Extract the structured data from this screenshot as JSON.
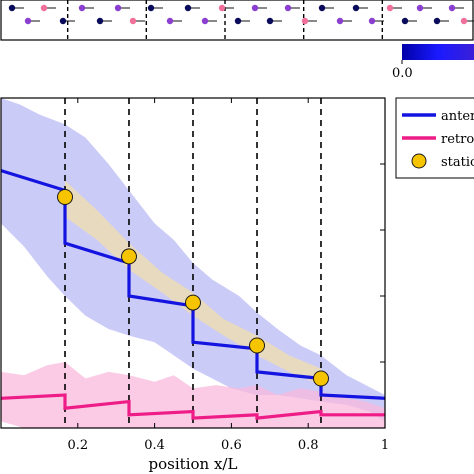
{
  "colors": {
    "anterograde": "#1414e0",
    "retrograde": "#ee1c87",
    "station": "#f7c400",
    "station_edge": "#1a1a1a",
    "anterograde_band": "#b9b9f5",
    "retrograde_band": "#f9b8dc",
    "station_band": "#f3dfa6",
    "particle_dark": "#0a0a5a",
    "particle_purple": "#8a3fd0",
    "particle_pink": "#f0709a"
  },
  "colorbar": {
    "tick_label": "0.0"
  },
  "legend": {
    "items": [
      {
        "label": "antero",
        "marker": "line",
        "color_key": "anterograde"
      },
      {
        "label": "retro",
        "marker": "line",
        "color_key": "retrograde"
      },
      {
        "label": "statio",
        "marker": "circle",
        "color_key": "station"
      }
    ]
  },
  "chart_data": {
    "type": "line",
    "xlabel": "position x/L",
    "xlim": [
      0,
      1
    ],
    "ylim": [
      0,
      1
    ],
    "x_ticks": [
      0.2,
      0.4,
      0.6,
      0.8,
      1
    ],
    "x_tick_labels": [
      "0.2",
      "0.4",
      "0.6",
      "0.8",
      "1"
    ],
    "dividers": [
      0.1667,
      0.3333,
      0.5,
      0.6667,
      0.8333
    ],
    "series": [
      {
        "name": "antero",
        "color_key": "anterograde",
        "points": [
          [
            0,
            0.78
          ],
          [
            0.1667,
            0.72
          ],
          [
            0.1667,
            0.56
          ],
          [
            0.3333,
            0.5
          ],
          [
            0.3333,
            0.4
          ],
          [
            0.5,
            0.37
          ],
          [
            0.5,
            0.26
          ],
          [
            0.6667,
            0.24
          ],
          [
            0.6667,
            0.17
          ],
          [
            0.8333,
            0.15
          ],
          [
            0.8333,
            0.1
          ],
          [
            1,
            0.09
          ]
        ],
        "band_upper": [
          [
            0,
            1.0
          ],
          [
            0.05,
            0.98
          ],
          [
            0.1,
            0.95
          ],
          [
            0.1667,
            0.92
          ],
          [
            0.22,
            0.88
          ],
          [
            0.28,
            0.8
          ],
          [
            0.3333,
            0.72
          ],
          [
            0.4,
            0.62
          ],
          [
            0.45,
            0.57
          ],
          [
            0.5,
            0.5
          ],
          [
            0.55,
            0.45
          ],
          [
            0.62,
            0.4
          ],
          [
            0.6667,
            0.35
          ],
          [
            0.72,
            0.3
          ],
          [
            0.78,
            0.25
          ],
          [
            0.8333,
            0.22
          ],
          [
            0.9,
            0.16
          ],
          [
            0.95,
            0.13
          ],
          [
            1,
            0.1
          ]
        ],
        "band_lower": [
          [
            1,
            0.02
          ],
          [
            0.96,
            0.05
          ],
          [
            0.9,
            0.07
          ],
          [
            0.8333,
            0.08
          ],
          [
            0.78,
            0.09
          ],
          [
            0.72,
            0.1
          ],
          [
            0.6667,
            0.1
          ],
          [
            0.6,
            0.12
          ],
          [
            0.55,
            0.15
          ],
          [
            0.5,
            0.18
          ],
          [
            0.45,
            0.22
          ],
          [
            0.4,
            0.26
          ],
          [
            0.3333,
            0.28
          ],
          [
            0.28,
            0.3
          ],
          [
            0.22,
            0.34
          ],
          [
            0.1667,
            0.4
          ],
          [
            0.12,
            0.46
          ],
          [
            0.06,
            0.55
          ],
          [
            0,
            0.62
          ]
        ]
      },
      {
        "name": "retro",
        "color_key": "retrograde",
        "points": [
          [
            0,
            0.09
          ],
          [
            0.1667,
            0.1
          ],
          [
            0.1667,
            0.06
          ],
          [
            0.3333,
            0.08
          ],
          [
            0.3333,
            0.04
          ],
          [
            0.5,
            0.05
          ],
          [
            0.5,
            0.03
          ],
          [
            0.6667,
            0.04
          ],
          [
            0.6667,
            0.03
          ],
          [
            0.8333,
            0.05
          ],
          [
            0.8333,
            0.04
          ],
          [
            1,
            0.04
          ]
        ],
        "band_upper": [
          [
            0,
            0.17
          ],
          [
            0.06,
            0.16
          ],
          [
            0.12,
            0.19
          ],
          [
            0.1667,
            0.2
          ],
          [
            0.22,
            0.15
          ],
          [
            0.28,
            0.17
          ],
          [
            0.3333,
            0.16
          ],
          [
            0.4,
            0.14
          ],
          [
            0.45,
            0.16
          ],
          [
            0.5,
            0.12
          ],
          [
            0.56,
            0.13
          ],
          [
            0.62,
            0.12
          ],
          [
            0.6667,
            0.13
          ],
          [
            0.72,
            0.1
          ],
          [
            0.78,
            0.12
          ],
          [
            0.8333,
            0.11
          ],
          [
            0.9,
            0.09
          ],
          [
            0.95,
            0.08
          ],
          [
            1,
            0.06
          ]
        ],
        "band_lower": [
          [
            1,
            -0.07
          ],
          [
            0.95,
            -0.02
          ],
          [
            0.9,
            -0.02
          ],
          [
            0.8333,
            -0.01
          ],
          [
            0.78,
            -0.02
          ],
          [
            0.72,
            -0.03
          ],
          [
            0.6667,
            -0.02
          ],
          [
            0.6,
            -0.03
          ],
          [
            0.55,
            -0.02
          ],
          [
            0.5,
            -0.03
          ],
          [
            0.45,
            -0.02
          ],
          [
            0.4,
            -0.03
          ],
          [
            0.3333,
            -0.02
          ],
          [
            0.28,
            -0.01
          ],
          [
            0.22,
            -0.01
          ],
          [
            0.1667,
            -0.02
          ],
          [
            0.12,
            0.0
          ],
          [
            0.06,
            -0.01
          ],
          [
            0,
            0.02
          ]
        ]
      },
      {
        "name": "statio",
        "color_key": "station",
        "marker": "circle",
        "points": [
          [
            0.1667,
            0.7
          ],
          [
            0.3333,
            0.52
          ],
          [
            0.5,
            0.38
          ],
          [
            0.6667,
            0.25
          ],
          [
            0.8333,
            0.15
          ]
        ],
        "band_upper": [
          [
            0.1667,
            0.75
          ],
          [
            0.25,
            0.66
          ],
          [
            0.3333,
            0.56
          ],
          [
            0.42,
            0.47
          ],
          [
            0.5,
            0.41
          ],
          [
            0.58,
            0.33
          ],
          [
            0.6667,
            0.28
          ],
          [
            0.75,
            0.22
          ],
          [
            0.8333,
            0.18
          ]
        ],
        "band_lower": [
          [
            0.8333,
            0.13
          ],
          [
            0.75,
            0.17
          ],
          [
            0.6667,
            0.22
          ],
          [
            0.58,
            0.28
          ],
          [
            0.5,
            0.34
          ],
          [
            0.42,
            0.41
          ],
          [
            0.3333,
            0.48
          ],
          [
            0.25,
            0.57
          ],
          [
            0.1667,
            0.64
          ]
        ]
      }
    ]
  }
}
